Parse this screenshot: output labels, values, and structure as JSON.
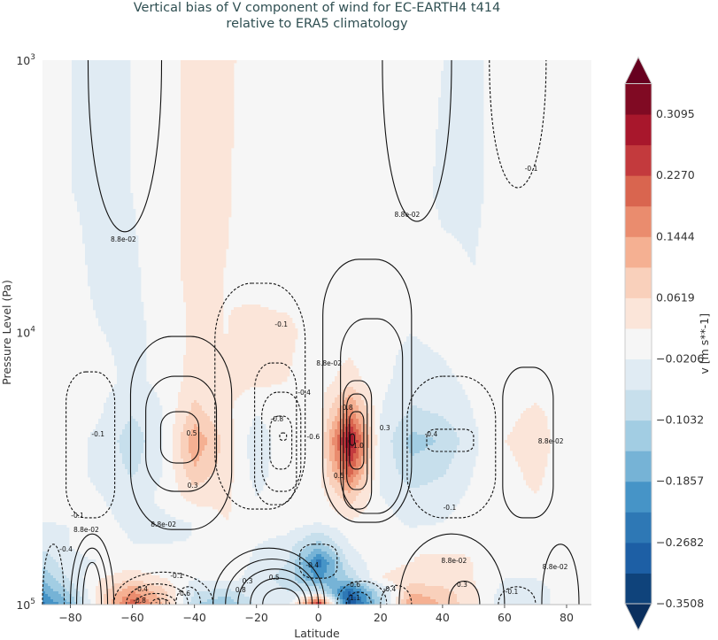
{
  "chart_data": {
    "type": "heatmap",
    "title": "Vertical bias of V component of wind for EC-EARTH4 t414",
    "subtitle": "relative to ERA5 climatology",
    "xlabel": "Latitude",
    "ylabel": "Pressure Level (Pa)",
    "xlim": [
      -89,
      88
    ],
    "ylim": [
      100000,
      1000
    ],
    "yscale": "log",
    "y_inverted": true,
    "x_ticks": [
      -80,
      -60,
      -40,
      -20,
      0,
      20,
      40,
      60,
      80
    ],
    "y_ticks": [
      {
        "value": 1000,
        "base": "10",
        "exp": "3"
      },
      {
        "value": 10000,
        "base": "10",
        "exp": "4"
      },
      {
        "value": 100000,
        "base": "10",
        "exp": "5"
      }
    ],
    "grid": false,
    "colorbar": {
      "label": "v [m s**-1]",
      "position": "right",
      "extend": "both",
      "levels_min": -0.3508,
      "levels_max": 0.3508,
      "n_bands": 17,
      "tick_labels": [
        "0.3095",
        "0.2270",
        "0.1444",
        "0.0619",
        "−0.0206",
        "−0.1032",
        "−0.1857",
        "−0.2682",
        "−0.3508"
      ],
      "tick_values": [
        0.3095,
        0.227,
        0.1444,
        0.0619,
        -0.0206,
        -0.1032,
        -0.1857,
        -0.2682,
        -0.3508
      ],
      "colors": [
        "#0f437b",
        "#1d5fa5",
        "#2e78b5",
        "#4694c7",
        "#76b3d6",
        "#a2cde3",
        "#c7dfec",
        "#e0ebf3",
        "#f6f6f6",
        "#fbe5d9",
        "#f9d0bb",
        "#f5b092",
        "#ea8c6e",
        "#d9654f",
        "#c33a3d",
        "#a8172c",
        "#800a23"
      ],
      "under_color": "#0a2f5e",
      "over_color": "#67001f"
    },
    "grid_lat": [
      -90,
      -80,
      -70,
      -60,
      -50,
      -40,
      -30,
      -20,
      -10,
      0,
      10,
      20,
      30,
      40,
      50,
      60,
      70,
      80,
      90
    ],
    "grid_pressure": [
      1000,
      3000,
      6000,
      10000,
      15000,
      20000,
      25000,
      32000,
      40000,
      50000,
      60000,
      70000,
      80000,
      90000,
      100000
    ],
    "values": [
      [
        0,
        -0.02,
        -0.03,
        -0.02,
        0.01,
        0.03,
        0.03,
        0,
        0,
        0,
        0,
        0,
        0,
        -0.02,
        -0.03,
        0,
        0,
        0,
        0
      ],
      [
        0,
        -0.02,
        -0.03,
        -0.02,
        0.01,
        0.03,
        0.025,
        0,
        0,
        0,
        0,
        0,
        0,
        -0.03,
        -0.03,
        0,
        0,
        0,
        0
      ],
      [
        0,
        -0.01,
        -0.03,
        -0.03,
        0.01,
        0.03,
        0.02,
        0.01,
        0,
        0,
        0,
        0,
        0,
        -0.01,
        -0.02,
        0,
        0,
        0,
        0
      ],
      [
        0,
        -0.01,
        -0.02,
        -0.03,
        -0.01,
        0.03,
        0.02,
        0.03,
        0.03,
        0,
        0,
        -0.01,
        -0.02,
        -0.01,
        0,
        0,
        0,
        0,
        0
      ],
      [
        0,
        0,
        -0.01,
        -0.03,
        -0.01,
        0.04,
        0.03,
        0.03,
        0.02,
        0,
        0.04,
        -0.01,
        -0.04,
        -0.03,
        -0.01,
        0,
        0,
        0,
        0
      ],
      [
        0,
        0,
        -0.02,
        -0.06,
        -0.02,
        0.08,
        0.03,
        -0.02,
        0.01,
        0,
        0.18,
        -0.02,
        -0.07,
        -0.06,
        -0.02,
        0.01,
        0.03,
        0,
        0
      ],
      [
        0,
        -0.01,
        -0.03,
        -0.09,
        -0.02,
        0.14,
        0.05,
        -0.05,
        0.01,
        0,
        0.32,
        -0.03,
        -0.12,
        -0.1,
        -0.03,
        0.02,
        0.04,
        0,
        0
      ],
      [
        0,
        -0.01,
        -0.03,
        -0.07,
        -0.02,
        0.1,
        0.04,
        -0.04,
        0.01,
        0.01,
        0.22,
        -0.03,
        -0.09,
        -0.07,
        -0.02,
        0.01,
        0.03,
        0,
        0
      ],
      [
        0,
        -0.01,
        -0.02,
        -0.04,
        -0.01,
        0.04,
        0.03,
        -0.02,
        0,
        0,
        0.09,
        -0.02,
        -0.05,
        -0.04,
        -0.01,
        0.01,
        0.02,
        0,
        0
      ],
      [
        -0.02,
        -0.02,
        -0.01,
        -0.03,
        -0.03,
        -0.02,
        0.02,
        0.01,
        0,
        -0.02,
        0.01,
        0,
        -0.03,
        -0.02,
        0,
        0,
        0.01,
        0,
        0
      ],
      [
        -0.05,
        -0.02,
        0,
        -0.02,
        -0.02,
        -0.02,
        0,
        -0.02,
        -0.04,
        -0.12,
        -0.02,
        0.02,
        0.02,
        0.01,
        0.02,
        0,
        0,
        0,
        0
      ],
      [
        -0.1,
        -0.03,
        -0.02,
        0,
        -0.02,
        -0.02,
        0.01,
        -0.03,
        -0.06,
        -0.25,
        -0.05,
        0.01,
        0.02,
        0.03,
        0.02,
        -0.01,
        -0.01,
        0,
        0
      ],
      [
        -0.15,
        -0.05,
        0.02,
        0.05,
        0.02,
        -0.02,
        0,
        -0.04,
        -0.08,
        -0.2,
        -0.1,
        0.02,
        0.04,
        0.03,
        0.02,
        -0.02,
        -0.02,
        0,
        0
      ],
      [
        -0.2,
        -0.1,
        0.05,
        0.15,
        0.08,
        -0.06,
        -0.08,
        -0.04,
        -0.06,
        -0.05,
        -0.28,
        -0.08,
        0.1,
        0.08,
        0.03,
        -0.04,
        -0.04,
        0,
        0
      ],
      [
        -0.25,
        -0.15,
        0.05,
        0.22,
        0.1,
        -0.1,
        -0.15,
        -0.05,
        -0.05,
        0.3,
        -0.33,
        -0.1,
        0.15,
        0.1,
        0.03,
        -0.05,
        -0.05,
        0.02,
        0
      ]
    ],
    "contours": [
      {
        "label": "8.8e-02",
        "lat": [
          -74.3,
          -50.6
        ],
        "p": [
          1000,
          4270
        ],
        "shape": "u",
        "dashed": false,
        "label_at": [
          -62.9,
          4540
        ]
      },
      {
        "label": "8.8e-02",
        "lat": [
          20.6,
          42.9
        ],
        "p": [
          1000,
          3910
        ],
        "shape": "u",
        "dashed": false,
        "label_at": [
          28.6,
          3680
        ]
      },
      {
        "label": "-0.1",
        "lat": [
          55.1,
          73.4
        ],
        "p": [
          1000,
          2940
        ],
        "shape": "u",
        "dashed": true,
        "label_at": [
          68.6,
          2490
        ]
      },
      {
        "label": "-0.1",
        "lat": [
          -81.4,
          -65.7
        ],
        "p": [
          13960,
          48000
        ],
        "shape": "loop",
        "dashed": true,
        "label_at": [
          -77.7,
          46950
        ]
      },
      {
        "label": "-0.1",
        "lat": [
          -73,
          -69
        ],
        "p": [
          22000,
          25500
        ],
        "shape": "none",
        "dashed": true,
        "label_at": [
          -71.1,
          23560
        ]
      },
      {
        "label": "8.8e-02",
        "lat": [
          -60.6,
          -28
        ],
        "p": [
          10350,
          52970
        ],
        "shape": "loop",
        "dashed": false,
        "label_at": [
          -50,
          50600
        ]
      },
      {
        "label": "0.3",
        "lat": [
          -55.7,
          -32.9
        ],
        "p": [
          14490,
          38370
        ],
        "shape": "loop",
        "dashed": false,
        "label_at": [
          -40.6,
          36370
        ]
      },
      {
        "label": "0.5",
        "lat": [
          -50.9,
          -38.6
        ],
        "p": [
          19550,
          30190
        ],
        "shape": "loop",
        "dashed": false,
        "label_at": [
          -40.9,
          23390
        ]
      },
      {
        "label": "-0.1",
        "lat": [
          -33.4,
          -4.3
        ],
        "p": [
          6600,
          44550
        ],
        "shape": "loop",
        "dashed": true,
        "label_at": [
          -12,
          9310
        ]
      },
      {
        "label": "-0.4",
        "lat": [
          -20.6,
          -7.1
        ],
        "p": [
          12950,
          42950
        ],
        "shape": "loop",
        "dashed": true,
        "label_at": [
          -4.6,
          16590
        ]
      },
      {
        "label": "-0.6",
        "lat": [
          -18.3,
          -5.7
        ],
        "p": [
          16590,
          38370
        ],
        "shape": "loop",
        "dashed": true,
        "label_at": [
          -1.7,
          24100
        ]
      },
      {
        "label": "-0.8",
        "lat": [
          -15.7,
          -8.6
        ],
        "p": [
          20290,
          31790
        ],
        "shape": "loop",
        "dashed": true,
        "label_at": [
          -13.4,
          20760
        ]
      },
      {
        "label": "",
        "lat": [
          -12.5,
          -10.3
        ],
        "p": [
          23400,
          24900
        ],
        "shape": "loop",
        "dashed": true,
        "label_at": null
      },
      {
        "label": "8.8e-02",
        "lat": [
          1.4,
          30
        ],
        "p": [
          5390,
          49860
        ],
        "shape": "loop",
        "dashed": false,
        "label_at": [
          3.4,
          12950
        ]
      },
      {
        "label": "0.3",
        "lat": [
          7.1,
          27.1
        ],
        "p": [
          8910,
          46240
        ],
        "shape": "loop",
        "dashed": false,
        "label_at": [
          21.4,
          22380
        ]
      },
      {
        "label": "0.5",
        "lat": [
          8,
          17.1
        ],
        "p": [
          15040,
          44550
        ],
        "shape": "loop",
        "dashed": false,
        "label_at": [
          6.6,
          33500
        ]
      },
      {
        "label": "0.8",
        "lat": [
          9.1,
          15.7
        ],
        "p": [
          16830,
          37780
        ],
        "shape": "loop",
        "dashed": false,
        "label_at": [
          9.4,
          18840
        ]
      },
      {
        "label": "1.0",
        "lat": [
          10,
          14.6
        ],
        "p": [
          19550,
          31790
        ],
        "shape": "loop",
        "dashed": false,
        "label_at": [
          12.9,
          25980
        ]
      },
      {
        "label": "",
        "lat": [
          10.2,
          11.6
        ],
        "p": [
          23600,
          26000
        ],
        "shape": "loop",
        "dashed": false,
        "label_at": null
      },
      {
        "label": "-0.1",
        "lat": [
          28.6,
          57.1
        ],
        "p": [
          14490,
          48000
        ],
        "shape": "loop",
        "dashed": true,
        "label_at": [
          42.3,
          43890
        ]
      },
      {
        "label": "-0.4",
        "lat": [
          34.9,
          50
        ],
        "p": [
          22700,
          27380
        ],
        "shape": "loop",
        "dashed": true,
        "label_at": [
          36.3,
          23560
        ]
      },
      {
        "label": "8.8e-02",
        "lat": [
          59.4,
          75.7
        ],
        "p": [
          13440,
          48000
        ],
        "shape": "loop",
        "dashed": false,
        "label_at": [
          74.9,
          25000
        ]
      },
      {
        "label": "8.8e-02",
        "lat": [
          -80,
          -66
        ],
        "p": [
          55000,
          100000
        ],
        "shape": "n",
        "dashed": false,
        "label_at": [
          -74.9,
          52970
        ]
      },
      {
        "label": "",
        "lat": [
          -78,
          -68
        ],
        "p": [
          62000,
          100000
        ],
        "shape": "n",
        "dashed": false,
        "label_at": null
      },
      {
        "label": "",
        "lat": [
          -76,
          -70
        ],
        "p": [
          70000,
          100000
        ],
        "shape": "n",
        "dashed": false,
        "label_at": null
      },
      {
        "label": "-0.4",
        "lat": [
          -89,
          -82
        ],
        "p": [
          60000,
          100000
        ],
        "shape": "n",
        "dashed": true,
        "label_at": [
          -81.4,
          62400
        ]
      },
      {
        "label": "-0.1",
        "lat": [
          -66,
          -34
        ],
        "p": [
          76000,
          100000
        ],
        "shape": "n",
        "dashed": true,
        "label_at": [
          -45.7,
          78120
        ]
      },
      {
        "label": "-0.4",
        "lat": [
          -62,
          -42
        ],
        "p": [
          84000,
          100000
        ],
        "shape": "n",
        "dashed": true,
        "label_at": [
          -57.1,
          87340
        ]
      },
      {
        "label": "-0.8",
        "lat": [
          -59,
          -46
        ],
        "p": [
          91000,
          100000
        ],
        "shape": "n",
        "dashed": true,
        "label_at": [
          -57.7,
          96400
        ]
      },
      {
        "label": "-1.1",
        "lat": [
          -54,
          -48
        ],
        "p": [
          95000,
          100000
        ],
        "shape": "n",
        "dashed": true,
        "label_at": [
          -50.6,
          97800
        ]
      },
      {
        "label": "-0.6",
        "lat": [
          -46,
          -38
        ],
        "p": [
          86000,
          100000
        ],
        "shape": "n",
        "dashed": true,
        "label_at": [
          -43.4,
          90700
        ]
      },
      {
        "label": "0.3",
        "lat": [
          -34,
          2
        ],
        "p": [
          62000,
          100000
        ],
        "shape": "n",
        "dashed": false,
        "label_at": [
          -22.9,
          81700
        ]
      },
      {
        "label": "0.5",
        "lat": [
          -30,
          0
        ],
        "p": [
          68000,
          100000
        ],
        "shape": "n",
        "dashed": false,
        "label_at": [
          -14.3,
          79330
        ]
      },
      {
        "label": "0.8",
        "lat": [
          -26,
          -2
        ],
        "p": [
          74000,
          100000
        ],
        "shape": "n",
        "dashed": false,
        "label_at": [
          -25.1,
          88100
        ]
      },
      {
        "label": "",
        "lat": [
          -22,
          -4
        ],
        "p": [
          80000,
          100000
        ],
        "shape": "n",
        "dashed": false,
        "label_at": null
      },
      {
        "label": "",
        "lat": [
          -18,
          -6
        ],
        "p": [
          87000,
          100000
        ],
        "shape": "n",
        "dashed": false,
        "label_at": null
      },
      {
        "label": "-0.4",
        "lat": [
          -6,
          6
        ],
        "p": [
          60000,
          80000
        ],
        "shape": "loop",
        "dashed": true,
        "label_at": [
          -2,
          71400
        ]
      },
      {
        "label": "-0.6",
        "lat": [
          6,
          22
        ],
        "p": [
          82000,
          100000
        ],
        "shape": "n",
        "dashed": true,
        "label_at": [
          11.4,
          84200
        ]
      },
      {
        "label": "-1.1",
        "lat": [
          9,
          17
        ],
        "p": [
          90000,
          100000
        ],
        "shape": "n",
        "dashed": true,
        "label_at": [
          11.4,
          94200
        ]
      },
      {
        "label": "-0.4",
        "lat": [
          20,
          30
        ],
        "p": [
          85000,
          100000
        ],
        "shape": "n",
        "dashed": true,
        "label_at": [
          22.9,
          87340
        ]
      },
      {
        "label": "8.8e-02",
        "lat": [
          26,
          60
        ],
        "p": [
          55000,
          100000
        ],
        "shape": "n",
        "dashed": false,
        "label_at": [
          43.7,
          68770
        ]
      },
      {
        "label": "0.3",
        "lat": [
          42,
          52
        ],
        "p": [
          82000,
          100000
        ],
        "shape": "n",
        "dashed": false,
        "label_at": [
          46.3,
          84200
        ]
      },
      {
        "label": "-0.1",
        "lat": [
          58,
          70
        ],
        "p": [
          86000,
          100000
        ],
        "shape": "n",
        "dashed": true,
        "label_at": [
          62.3,
          89400
        ]
      },
      {
        "label": "8.8e-02",
        "lat": [
          72,
          84
        ],
        "p": [
          60000,
          100000
        ],
        "shape": "n",
        "dashed": false,
        "label_at": [
          76.3,
          72470
        ]
      }
    ]
  }
}
